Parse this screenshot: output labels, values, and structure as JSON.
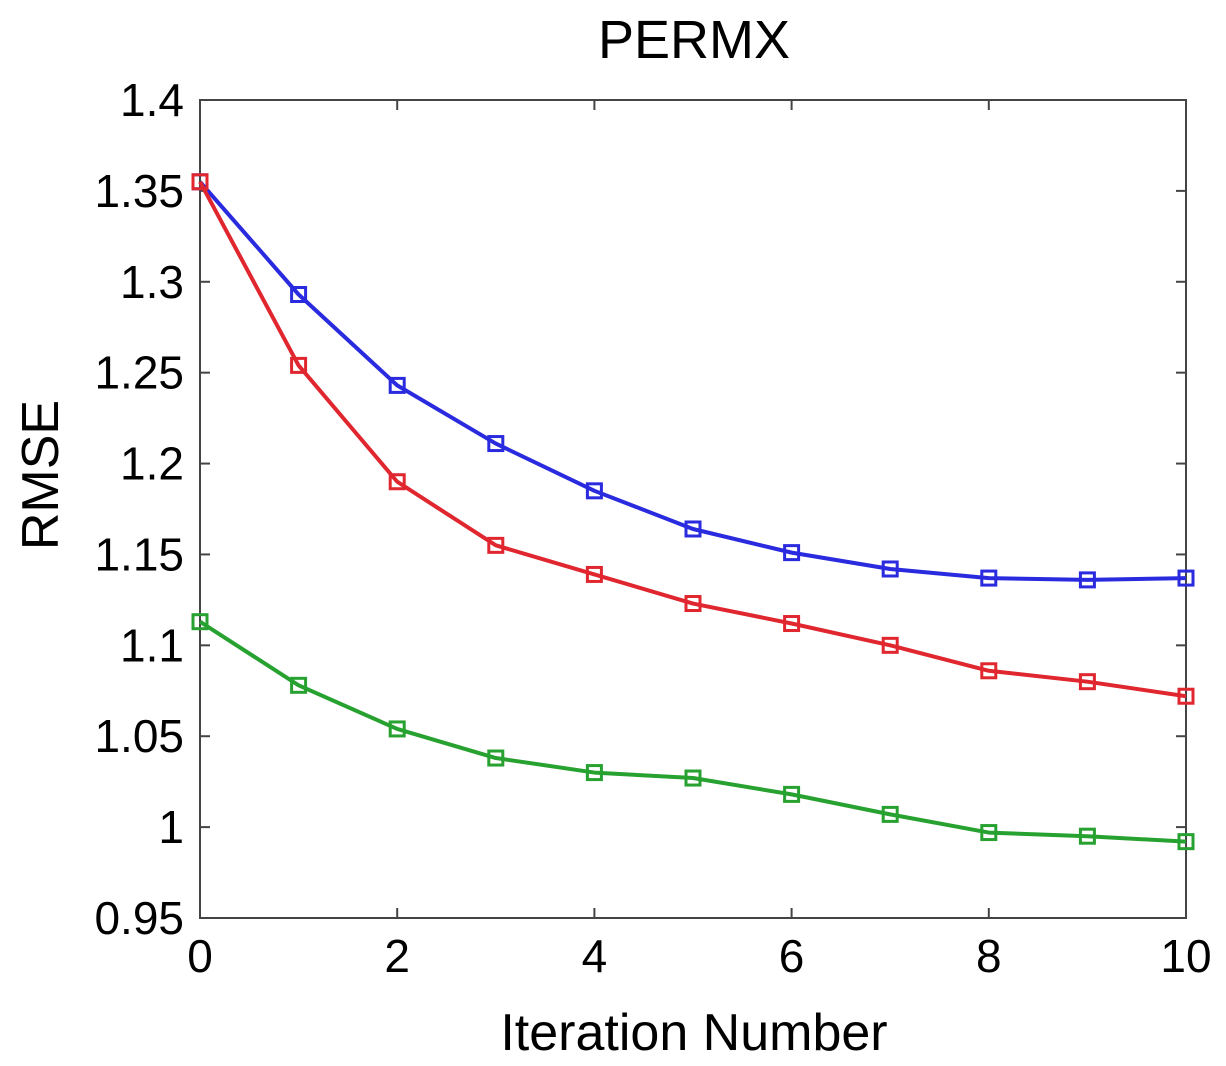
{
  "chart_data": {
    "type": "line",
    "title": "PERMX",
    "xlabel": "Iteration Number",
    "ylabel": "RMSE",
    "xlim": [
      0,
      10
    ],
    "ylim": [
      0.95,
      1.4
    ],
    "x_ticks": [
      "0",
      "2",
      "4",
      "6",
      "8",
      "10"
    ],
    "y_ticks": [
      "0.95",
      "1",
      "1.05",
      "1.1",
      "1.15",
      "1.2",
      "1.25",
      "1.3",
      "1.35",
      "1.4"
    ],
    "grid": false,
    "marker": "square",
    "x": [
      0,
      1,
      2,
      3,
      4,
      5,
      6,
      7,
      8,
      9,
      10
    ],
    "series": [
      {
        "color": "#2a2adf",
        "values": [
          1.355,
          1.293,
          1.243,
          1.211,
          1.185,
          1.164,
          1.151,
          1.142,
          1.137,
          1.136,
          1.137
        ]
      },
      {
        "color": "#e0262e",
        "values": [
          1.355,
          1.254,
          1.19,
          1.155,
          1.139,
          1.123,
          1.112,
          1.1,
          1.086,
          1.08,
          1.072
        ]
      },
      {
        "color": "#27a12f",
        "values": [
          1.113,
          1.078,
          1.054,
          1.038,
          1.03,
          1.027,
          1.018,
          1.007,
          0.997,
          0.995,
          0.992
        ]
      }
    ]
  }
}
